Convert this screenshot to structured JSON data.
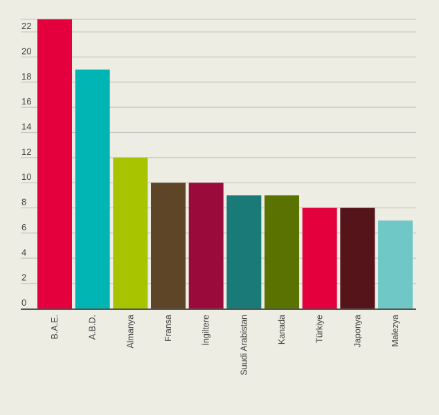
{
  "chart_data": {
    "type": "bar",
    "categories": [
      "B.A.E.",
      "A.B.D.",
      "Almanya",
      "Fransa",
      "İngiltere",
      "Suudi Arabistan",
      "Kanada",
      "Türkiye",
      "Japonya",
      "Malezya"
    ],
    "values": [
      23,
      19,
      12,
      10,
      10,
      9,
      9,
      8,
      8,
      7
    ],
    "colors": [
      "#e4003c",
      "#00b5b3",
      "#a8c300",
      "#5e4527",
      "#9a0b3c",
      "#1a7a78",
      "#5a7200",
      "#e4003c",
      "#54141a",
      "#6fc8c6"
    ],
    "yticks": [
      0,
      2,
      4,
      6,
      8,
      10,
      12,
      14,
      16,
      18,
      20,
      22
    ],
    "ylim": [
      0,
      22
    ],
    "grid": true,
    "legend": "none",
    "title": "",
    "xlabel": "",
    "ylabel": ""
  }
}
